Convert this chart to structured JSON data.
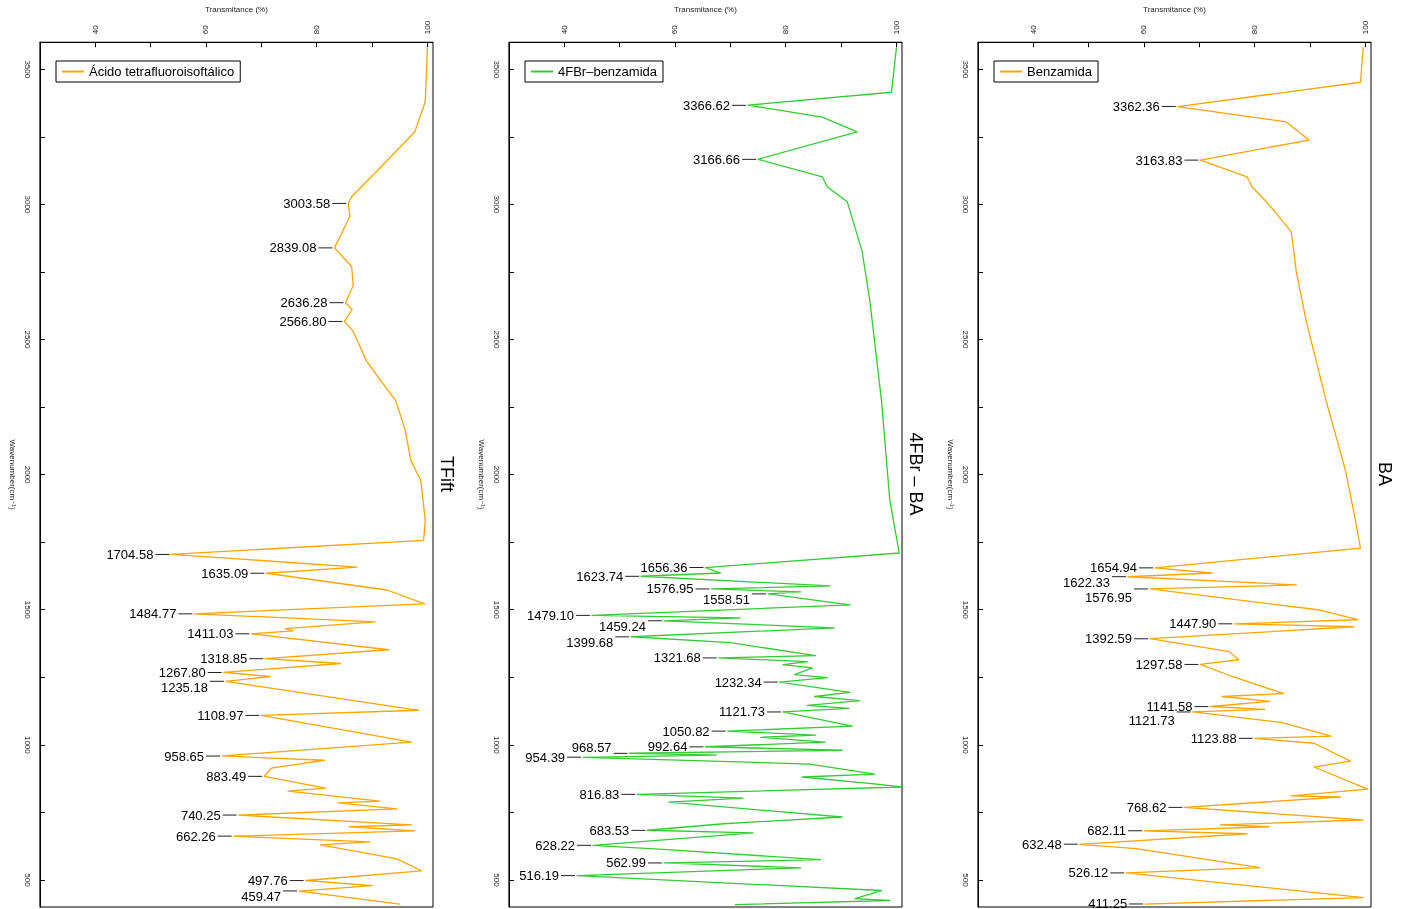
{
  "chart_data": [
    {
      "type": "line",
      "title": "TFift",
      "xlabel": "Transmitance (%)",
      "ylabel": "Wavenumber(cm⁻¹)",
      "xlim": [
        30,
        101
      ],
      "xticks": [
        40,
        {
          "value": 50,
          "label": null
        },
        60,
        {
          "value": 70,
          "label": null
        },
        80,
        {
          "value": 90,
          "label": null
        },
        100
      ],
      "ylim": [
        400,
        3600
      ],
      "yticks": [
        500,
        {
          "value": 750,
          "label": null
        },
        1000,
        {
          "value": 1250,
          "label": null
        },
        1500,
        {
          "value": 1750,
          "label": null
        },
        2000,
        {
          "value": 2250,
          "label": null
        },
        2500,
        {
          "value": 2750,
          "label": null
        },
        3000,
        {
          "value": 3250,
          "label": null
        },
        3500
      ],
      "legend": "top left",
      "series": [
        {
          "name": "Ácido tetrafluoroisoftálico",
          "color": "#ffa500",
          "x": [
            100,
            99.6,
            97.7,
            90.7,
            86.3,
            85.7,
            86,
            83.2,
            86.3,
            86.6,
            85.2,
            86.4,
            85,
            86.6,
            89,
            91.6,
            94.3,
            96,
            97,
            98.8,
            99.6,
            99.3,
            53.75,
            87.3,
            70.9,
            92.7,
            99.5,
            57.9,
            90.5,
            74.3,
            75.7,
            68.2,
            93,
            70.7,
            84.3,
            63.2,
            71.6,
            63.6,
            98.4,
            70,
            97.1,
            62.9,
            81.4,
            71.8,
            70.5,
            81.6,
            74.8,
            91.4,
            83.9,
            94.5,
            65.9,
            97.1,
            85.9,
            97.7,
            65,
            89.6,
            80.7,
            94.5,
            98.9,
            78,
            90,
            76.8,
            95
          ],
          "values": [
            3580,
            3380,
            3268,
            3120,
            3028,
            3004,
            2955,
            2839,
            2770,
            2700,
            2636,
            2612,
            2567,
            2530,
            2420,
            2347,
            2273,
            2163,
            2052,
            1978,
            1830,
            1757,
            1705,
            1658,
            1635,
            1573,
            1522,
            1485,
            1455,
            1430,
            1422,
            1411,
            1352,
            1319,
            1301,
            1268,
            1253,
            1235,
            1128,
            1109,
            1010,
            959,
            943,
            914,
            883,
            840,
            829,
            792,
            785,
            763,
            740,
            704,
            697,
            682,
            662,
            641,
            630,
            578,
            534,
            498,
            479,
            459,
            411
          ]
        }
      ],
      "annotations": [
        {
          "text": "3003.58",
          "x": 85.7,
          "y": 3003.58
        },
        {
          "text": "2839.08",
          "x": 83.2,
          "y": 2839.08
        },
        {
          "text": "2636.28",
          "x": 85.2,
          "y": 2636.28
        },
        {
          "text": "2566.80",
          "x": 85,
          "y": 2566.8
        },
        {
          "text": "1704.58",
          "x": 53.75,
          "y": 1704.58
        },
        {
          "text": "1635.09",
          "x": 70.9,
          "y": 1635.09
        },
        {
          "text": "1484.77",
          "x": 57.9,
          "y": 1484.77
        },
        {
          "text": "1411.03",
          "x": 68.2,
          "y": 1411.03
        },
        {
          "text": "1318.85",
          "x": 70.7,
          "y": 1318.85
        },
        {
          "text": "1267.80",
          "x": 63.2,
          "y": 1267.8
        },
        {
          "text": "1235.18",
          "x": 63.6,
          "y": 1235.18
        },
        {
          "text": "1108.97",
          "x": 70,
          "y": 1108.97
        },
        {
          "text": "958.65",
          "x": 62.9,
          "y": 958.65
        },
        {
          "text": "883.49",
          "x": 70.5,
          "y": 883.49
        },
        {
          "text": "740.25",
          "x": 65.9,
          "y": 740.25
        },
        {
          "text": "662.26",
          "x": 65,
          "y": 662.26
        },
        {
          "text": "497.76",
          "x": 78,
          "y": 497.76
        },
        {
          "text": "459.47",
          "x": 76.8,
          "y": 459.47
        }
      ]
    },
    {
      "type": "line",
      "title": "4FBr – BA",
      "xlabel": "Transmitance (%)",
      "ylabel": "Wavenumber(cm⁻¹)",
      "xlim": [
        30,
        101
      ],
      "xticks": [
        40,
        {
          "value": 50,
          "label": null
        },
        60,
        {
          "value": 70,
          "label": null
        },
        80,
        {
          "value": 90,
          "label": null
        },
        100
      ],
      "ylim": [
        400,
        3600
      ],
      "yticks": [
        500,
        {
          "value": 750,
          "label": null
        },
        1000,
        {
          "value": 1250,
          "label": null
        },
        1500,
        {
          "value": 1750,
          "label": null
        },
        2000,
        {
          "value": 2250,
          "label": null
        },
        2500,
        {
          "value": 2750,
          "label": null
        },
        3000,
        {
          "value": 3250,
          "label": null
        },
        3500
      ],
      "legend": "top left",
      "series": [
        {
          "name": "4FBr–benzamida",
          "color": "#33cc33",
          "x": [
            100,
            99.1,
            73.2,
            86.6,
            92.9,
            75,
            86.6,
            87.5,
            91.1,
            93.8,
            95.2,
            97.3,
            98.8,
            100.5,
            65.5,
            68.2,
            53.9,
            88,
            66.6,
            82.7,
            76.8,
            91.6,
            45,
            71.8,
            58,
            88.8,
            52.1,
            70,
            85.4,
            67.9,
            83.9,
            79.5,
            84.8,
            81.6,
            87.5,
            78.9,
            91.6,
            85.2,
            93.4,
            83.9,
            91.4,
            79.5,
            92,
            69.5,
            85.4,
            75.5,
            87.1,
            65.5,
            90.2,
            51.8,
            67.5,
            43.4,
            84.3,
            96.1,
            83,
            96.4,
            100.9,
            53.2,
            72.3,
            58.9,
            90.2,
            68.8,
            55,
            74.1,
            45.2,
            58.6,
            86.3,
            58,
            82.7,
            42.3,
            97.3,
            92.5,
            98.8,
            70.9
          ],
          "values": [
            3580,
            3415,
            3367,
            3323,
            3268,
            3167,
            3102,
            3065,
            3010,
            2826,
            2642,
            2273,
            1905,
            1710,
            1656,
            1636,
            1624,
            1588,
            1577,
            1566,
            1559,
            1518,
            1479,
            1470,
            1459,
            1433,
            1400,
            1378,
            1330,
            1322,
            1308,
            1297,
            1285,
            1260,
            1249,
            1232,
            1194,
            1179,
            1164,
            1146,
            1135,
            1122,
            1069,
            1051,
            1036,
            1028,
            1010,
            993,
            980,
            969,
            962,
            954,
            929,
            892,
            881,
            855,
            844,
            817,
            803,
            788,
            733,
            708,
            684,
            674,
            628,
            612,
            575,
            563,
            545,
            516,
            461,
            431,
            424,
            409
          ]
        }
      ],
      "annotations": [
        {
          "text": "3366.62",
          "x": 73.2,
          "y": 3366.62
        },
        {
          "text": "3166.66",
          "x": 75,
          "y": 3166.66
        },
        {
          "text": "1656.36",
          "x": 65.5,
          "y": 1656.36
        },
        {
          "text": "1623.74",
          "x": 53.9,
          "y": 1623.74
        },
        {
          "text": "1576.95",
          "x": 66.6,
          "y": 1576.95
        },
        {
          "text": "1558.51",
          "x": 76.8,
          "y": 1558.51
        },
        {
          "text": "1479.10",
          "x": 45,
          "y": 1479.1
        },
        {
          "text": "1459.24",
          "x": 58,
          "y": 1459.24
        },
        {
          "text": "1399.68",
          "x": 52.1,
          "y": 1399.68
        },
        {
          "text": "1321.68",
          "x": 67.9,
          "y": 1321.68
        },
        {
          "text": "1232.34",
          "x": 78.9,
          "y": 1232.34
        },
        {
          "text": "1121.73",
          "x": 79.5,
          "y": 1121.73
        },
        {
          "text": "1050.82",
          "x": 69.5,
          "y": 1050.82
        },
        {
          "text": "992.64",
          "x": 65.5,
          "y": 992.64
        },
        {
          "text": "968.57",
          "x": 51.8,
          "y": 968.57
        },
        {
          "text": "954.39",
          "x": 43.4,
          "y": 954.39
        },
        {
          "text": "816.83",
          "x": 53.2,
          "y": 816.83
        },
        {
          "text": "683.53",
          "x": 55,
          "y": 683.53
        },
        {
          "text": "628.22",
          "x": 45.2,
          "y": 628.22
        },
        {
          "text": "562.99",
          "x": 58,
          "y": 562.99
        },
        {
          "text": "516.19",
          "x": 42.3,
          "y": 516.19
        }
      ]
    },
    {
      "type": "line",
      "title": "BA",
      "xlabel": "Transmitance (%)",
      "ylabel": "Wavenumber(cm⁻¹)",
      "xlim": [
        30,
        101
      ],
      "xticks": [
        40,
        {
          "value": 50,
          "label": null
        },
        60,
        {
          "value": 70,
          "label": null
        },
        80,
        {
          "value": 90,
          "label": null
        },
        100
      ],
      "ylim": [
        400,
        3600
      ],
      "yticks": [
        500,
        {
          "value": 750,
          "label": null
        },
        1000,
        {
          "value": 1250,
          "label": null
        },
        1500,
        {
          "value": 1750,
          "label": null
        },
        2000,
        {
          "value": 2250,
          "label": null
        },
        2500,
        {
          "value": 2750,
          "label": null
        },
        3000,
        {
          "value": 3250,
          "label": null
        },
        3500
      ],
      "legend": "top left",
      "series": [
        {
          "name": "Benzamida",
          "color": "#ffa500",
          "x": [
            99.6,
            99.1,
            66.1,
            85.7,
            89.8,
            70.2,
            78.6,
            79.5,
            82.1,
            86.6,
            87.5,
            89.3,
            92.9,
            96.4,
            98.2,
            99.1,
            62,
            72.3,
            57.1,
            87.5,
            61.1,
            91.4,
            98.6,
            76.3,
            97.9,
            61.1,
            75.4,
            77.1,
            70.2,
            75.9,
            85.2,
            74.1,
            82.7,
            72,
            81.8,
            68.8,
            84.8,
            93.8,
            80,
            90.7,
            97.3,
            90.7,
            100.4,
            86.6,
            95.5,
            67.3,
            99.5,
            73.8,
            82.6,
            60,
            78.6,
            48.4,
            58.6,
            80.9,
            56.8,
            99.6,
            60.2
          ],
          "values": [
            3580,
            3452,
            3362,
            3305,
            3238,
            3164,
            3102,
            3065,
            3010,
            2899,
            2752,
            2568,
            2273,
            2015,
            1830,
            1728,
            1655,
            1636,
            1622,
            1592,
            1577,
            1500,
            1463,
            1448,
            1437,
            1393,
            1345,
            1315,
            1298,
            1253,
            1190,
            1179,
            1161,
            1142,
            1131,
            1122,
            1083,
            1032,
            1024,
            1006,
            940,
            918,
            836,
            811,
            807,
            769,
            722,
            704,
            697,
            682,
            671,
            632,
            616,
            546,
            526,
            435,
            411
          ]
        }
      ],
      "annotations": [
        {
          "text": "3362.36",
          "x": 66.1,
          "y": 3362.36
        },
        {
          "text": "3163.83",
          "x": 70.2,
          "y": 3163.83
        },
        {
          "text": "1654.94",
          "x": 62,
          "y": 1654.94
        },
        {
          "text": "1622.33",
          "x": 57.1,
          "y": 1622.33
        },
        {
          "text": "1576.95",
          "x": 61.1,
          "y": 1576.95
        },
        {
          "text": "1447.90",
          "x": 76.3,
          "y": 1447.9
        },
        {
          "text": "1392.59",
          "x": 61.1,
          "y": 1392.59
        },
        {
          "text": "1297.58",
          "x": 70.2,
          "y": 1297.58
        },
        {
          "text": "1141.58",
          "x": 72,
          "y": 1141.58
        },
        {
          "text": "1121.73",
          "x": 68.8,
          "y": 1121.73
        },
        {
          "text": "1123.88",
          "x": 80,
          "y": 1024
        },
        {
          "text": "768.62",
          "x": 67.3,
          "y": 768.62
        },
        {
          "text": "682.11",
          "x": 60,
          "y": 682.11
        },
        {
          "text": "632.48",
          "x": 48.4,
          "y": 632.48
        },
        {
          "text": "526.12",
          "x": 56.8,
          "y": 526.12
        },
        {
          "text": "411.25",
          "x": 60.2,
          "y": 411.25
        }
      ]
    }
  ]
}
